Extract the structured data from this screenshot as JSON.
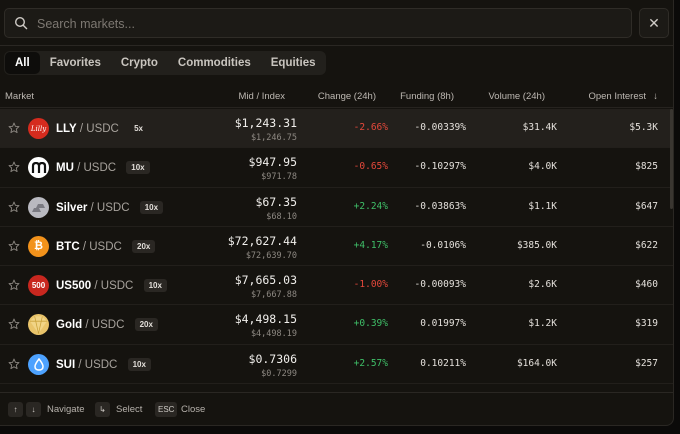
{
  "search": {
    "placeholder": "Search markets...",
    "close_label": "✕"
  },
  "tabs": [
    {
      "label": "All",
      "active": true
    },
    {
      "label": "Favorites",
      "active": false
    },
    {
      "label": "Crypto",
      "active": false
    },
    {
      "label": "Commodities",
      "active": false
    },
    {
      "label": "Equities",
      "active": false
    }
  ],
  "columns": {
    "market": "Market",
    "mid": "Mid / Index",
    "change": "Change (24h)",
    "funding": "Funding (8h)",
    "volume": "Volume (24h)",
    "oi": "Open Interest",
    "sort_arrow": "↓"
  },
  "rows": [
    {
      "symbol": "LLY",
      "quote": "/ USDC",
      "leverage": "5x",
      "mid": "$1,243.31",
      "index": "$1,246.75",
      "change": "-2.66%",
      "funding": "-0.00339%",
      "volume": "$31.4K",
      "oi": "$5.3K",
      "icon": "lilly-logo-icon",
      "logo_text": "Lilly",
      "color": "#d52b1e"
    },
    {
      "symbol": "MU",
      "quote": "/ USDC",
      "leverage": "10x",
      "mid": "$947.95",
      "index": "$971.78",
      "change": "-0.65%",
      "funding": "-0.10297%",
      "volume": "$4.0K",
      "oi": "$825",
      "icon": "micron-logo-icon",
      "logo_text": "",
      "color": "#ffffff"
    },
    {
      "symbol": "Silver",
      "quote": "/ USDC",
      "leverage": "10x",
      "mid": "$67.35",
      "index": "$68.10",
      "change": "+2.24%",
      "funding": "-0.03863%",
      "volume": "$1.1K",
      "oi": "$647",
      "icon": "silver-bars-icon",
      "logo_text": "",
      "color": "#b9b9c0"
    },
    {
      "symbol": "BTC",
      "quote": "/ USDC",
      "leverage": "20x",
      "mid": "$72,627.44",
      "index": "$72,639.70",
      "change": "+4.17%",
      "funding": "-0.0106%",
      "volume": "$385.0K",
      "oi": "$622",
      "icon": "bitcoin-icon",
      "logo_text": "₿",
      "color": "#f2921b"
    },
    {
      "symbol": "US500",
      "quote": "/ USDC",
      "leverage": "10x",
      "mid": "$7,665.03",
      "index": "$7,667.88",
      "change": "-1.00%",
      "funding": "-0.00093%",
      "volume": "$2.6K",
      "oi": "$460",
      "icon": "us500-icon",
      "logo_text": "500",
      "color": "#c8271f"
    },
    {
      "symbol": "Gold",
      "quote": "/ USDC",
      "leverage": "20x",
      "mid": "$4,498.15",
      "index": "$4,498.19",
      "change": "+0.39%",
      "funding": "0.01997%",
      "volume": "$1.2K",
      "oi": "$319",
      "icon": "gold-bar-icon",
      "logo_text": "",
      "color": "#e9c46a"
    },
    {
      "symbol": "SUI",
      "quote": "/ USDC",
      "leverage": "10x",
      "mid": "$0.7306",
      "index": "$0.7299",
      "change": "+2.57%",
      "funding": "0.10211%",
      "volume": "$164.0K",
      "oi": "$257",
      "icon": "sui-logo-icon",
      "logo_text": "",
      "color": "#4da2ff"
    }
  ],
  "footer": {
    "up_key": "↑",
    "down_key": "↓",
    "navigate": "Navigate",
    "enter_key": "↳",
    "select": "Select",
    "esc_key": "ESC",
    "close": "Close"
  },
  "colors": {
    "positive": "#3fbf68",
    "negative": "#e5483b",
    "background": "#15130f",
    "highlight_row": "#23201c"
  }
}
